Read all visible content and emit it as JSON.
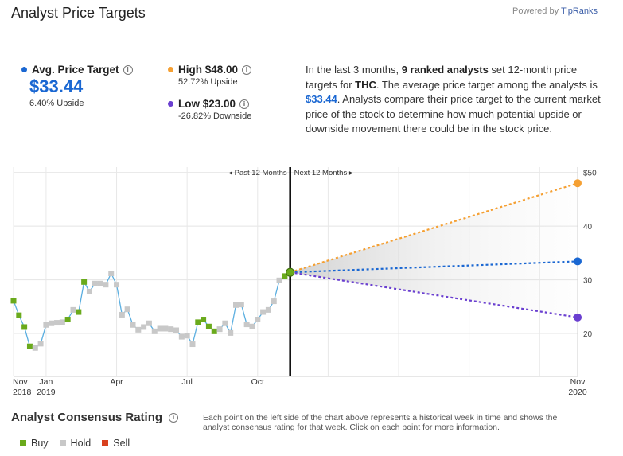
{
  "header": {
    "title": "Analyst Price Targets",
    "powered_prefix": "Powered by ",
    "powered_brand": "TipRanks"
  },
  "avg": {
    "label": "Avg. Price Target",
    "value": "$33.44",
    "sub": "6.40% Upside",
    "color": "#1a67d2"
  },
  "high": {
    "label": "High $48.00",
    "sub": "52.72% Upside",
    "color": "#f5a033"
  },
  "low": {
    "label": "Low $23.00",
    "sub": "-26.82% Downside",
    "color": "#6a3fd0"
  },
  "description": {
    "p1": "In the last 3 months, ",
    "b1": "9 ranked analysts",
    "p2": " set 12-month price targets for ",
    "b2": "THC",
    "p3": ". The average price target among the analysts is ",
    "hl": "$33.44",
    "p4": ". Analysts compare their price target to the current market price of the stock to determine how much potential upside or downside movement there could be in the stock price."
  },
  "chart_data": {
    "type": "line",
    "ylim": [
      12,
      51
    ],
    "yticks": [
      {
        "value": 20,
        "label": "20"
      },
      {
        "value": 30,
        "label": "30"
      },
      {
        "value": 40,
        "label": "40"
      },
      {
        "value": 50,
        "label": "$50"
      }
    ],
    "xlabels": [
      {
        "week": 0,
        "line1": "Nov",
        "line2": "2018"
      },
      {
        "week": 6,
        "line1": "Jan",
        "line2": "2019"
      },
      {
        "week": 19,
        "line1": "Apr",
        "line2": ""
      },
      {
        "week": 32,
        "line1": "Jul",
        "line2": ""
      },
      {
        "week": 45,
        "line1": "Oct",
        "line2": ""
      },
      {
        "week": 104,
        "line1": "Nov",
        "line2": "2020"
      }
    ],
    "past_label": "Past 12 Months",
    "next_label": "Next 12 Months",
    "ratings_legend": {
      "buy": "#6aaa1c",
      "hold": "#c8c8c8",
      "sell": "#d8401f"
    },
    "price_line_color": "#5aaee0",
    "weekly": [
      {
        "week": 0,
        "price": 26.1,
        "rating": "buy"
      },
      {
        "week": 1,
        "price": 23.4,
        "rating": "buy"
      },
      {
        "week": 2,
        "price": 21.2,
        "rating": "buy"
      },
      {
        "week": 3,
        "price": 17.6,
        "rating": "buy"
      },
      {
        "week": 4,
        "price": 17.3,
        "rating": "hold"
      },
      {
        "week": 5,
        "price": 18.1,
        "rating": "hold"
      },
      {
        "week": 6,
        "price": 21.6,
        "rating": "hold"
      },
      {
        "week": 7,
        "price": 21.9,
        "rating": "hold"
      },
      {
        "week": 8,
        "price": 22.0,
        "rating": "hold"
      },
      {
        "week": 9,
        "price": 22.1,
        "rating": "hold"
      },
      {
        "week": 10,
        "price": 22.6,
        "rating": "buy"
      },
      {
        "week": 11,
        "price": 24.4,
        "rating": "hold"
      },
      {
        "week": 12,
        "price": 24.0,
        "rating": "buy"
      },
      {
        "week": 13,
        "price": 29.6,
        "rating": "buy"
      },
      {
        "week": 14,
        "price": 27.8,
        "rating": "hold"
      },
      {
        "week": 15,
        "price": 29.3,
        "rating": "hold"
      },
      {
        "week": 16,
        "price": 29.3,
        "rating": "hold"
      },
      {
        "week": 17,
        "price": 29.1,
        "rating": "hold"
      },
      {
        "week": 18,
        "price": 31.2,
        "rating": "hold"
      },
      {
        "week": 19,
        "price": 29.1,
        "rating": "hold"
      },
      {
        "week": 20,
        "price": 23.5,
        "rating": "hold"
      },
      {
        "week": 21,
        "price": 24.5,
        "rating": "hold"
      },
      {
        "week": 22,
        "price": 21.6,
        "rating": "hold"
      },
      {
        "week": 23,
        "price": 20.7,
        "rating": "hold"
      },
      {
        "week": 24,
        "price": 21.2,
        "rating": "hold"
      },
      {
        "week": 25,
        "price": 21.9,
        "rating": "hold"
      },
      {
        "week": 26,
        "price": 20.4,
        "rating": "hold"
      },
      {
        "week": 27,
        "price": 20.9,
        "rating": "hold"
      },
      {
        "week": 28,
        "price": 20.9,
        "rating": "hold"
      },
      {
        "week": 29,
        "price": 20.8,
        "rating": "hold"
      },
      {
        "week": 30,
        "price": 20.6,
        "rating": "hold"
      },
      {
        "week": 31,
        "price": 19.4,
        "rating": "hold"
      },
      {
        "week": 32,
        "price": 19.6,
        "rating": "hold"
      },
      {
        "week": 33,
        "price": 18.0,
        "rating": "hold"
      },
      {
        "week": 34,
        "price": 22.1,
        "rating": "buy"
      },
      {
        "week": 35,
        "price": 22.6,
        "rating": "buy"
      },
      {
        "week": 36,
        "price": 21.3,
        "rating": "buy"
      },
      {
        "week": 37,
        "price": 20.4,
        "rating": "buy"
      },
      {
        "week": 38,
        "price": 20.8,
        "rating": "hold"
      },
      {
        "week": 39,
        "price": 21.9,
        "rating": "hold"
      },
      {
        "week": 40,
        "price": 20.1,
        "rating": "hold"
      },
      {
        "week": 41,
        "price": 25.3,
        "rating": "hold"
      },
      {
        "week": 42,
        "price": 25.4,
        "rating": "hold"
      },
      {
        "week": 43,
        "price": 21.7,
        "rating": "hold"
      },
      {
        "week": 44,
        "price": 21.3,
        "rating": "hold"
      },
      {
        "week": 45,
        "price": 22.6,
        "rating": "hold"
      },
      {
        "week": 46,
        "price": 24.0,
        "rating": "hold"
      },
      {
        "week": 47,
        "price": 24.4,
        "rating": "hold"
      },
      {
        "week": 48,
        "price": 26.0,
        "rating": "hold"
      },
      {
        "week": 49,
        "price": 29.9,
        "rating": "hold"
      },
      {
        "week": 50,
        "price": 30.7,
        "rating": "buy"
      },
      {
        "week": 51,
        "price": 31.4,
        "rating": "buy"
      }
    ],
    "current": {
      "week": 51,
      "price": 31.4
    },
    "projections": [
      {
        "name": "High",
        "target": 48.0,
        "week": 104,
        "color": "#f5a033"
      },
      {
        "name": "Average",
        "target": 33.44,
        "week": 104,
        "color": "#1a67d2"
      },
      {
        "name": "Low",
        "target": 23.0,
        "week": 104,
        "color": "#6a3fd0"
      }
    ]
  },
  "consensus": {
    "title": "Analyst Consensus Rating",
    "description": "Each point on the left side of the chart above represents a historical week in time and shows the analyst consensus rating for that week. Click on each point for more information.",
    "legend": [
      {
        "label": "Buy",
        "color": "#6aaa1c"
      },
      {
        "label": "Hold",
        "color": "#c8c8c8"
      },
      {
        "label": "Sell",
        "color": "#d8401f"
      }
    ]
  }
}
